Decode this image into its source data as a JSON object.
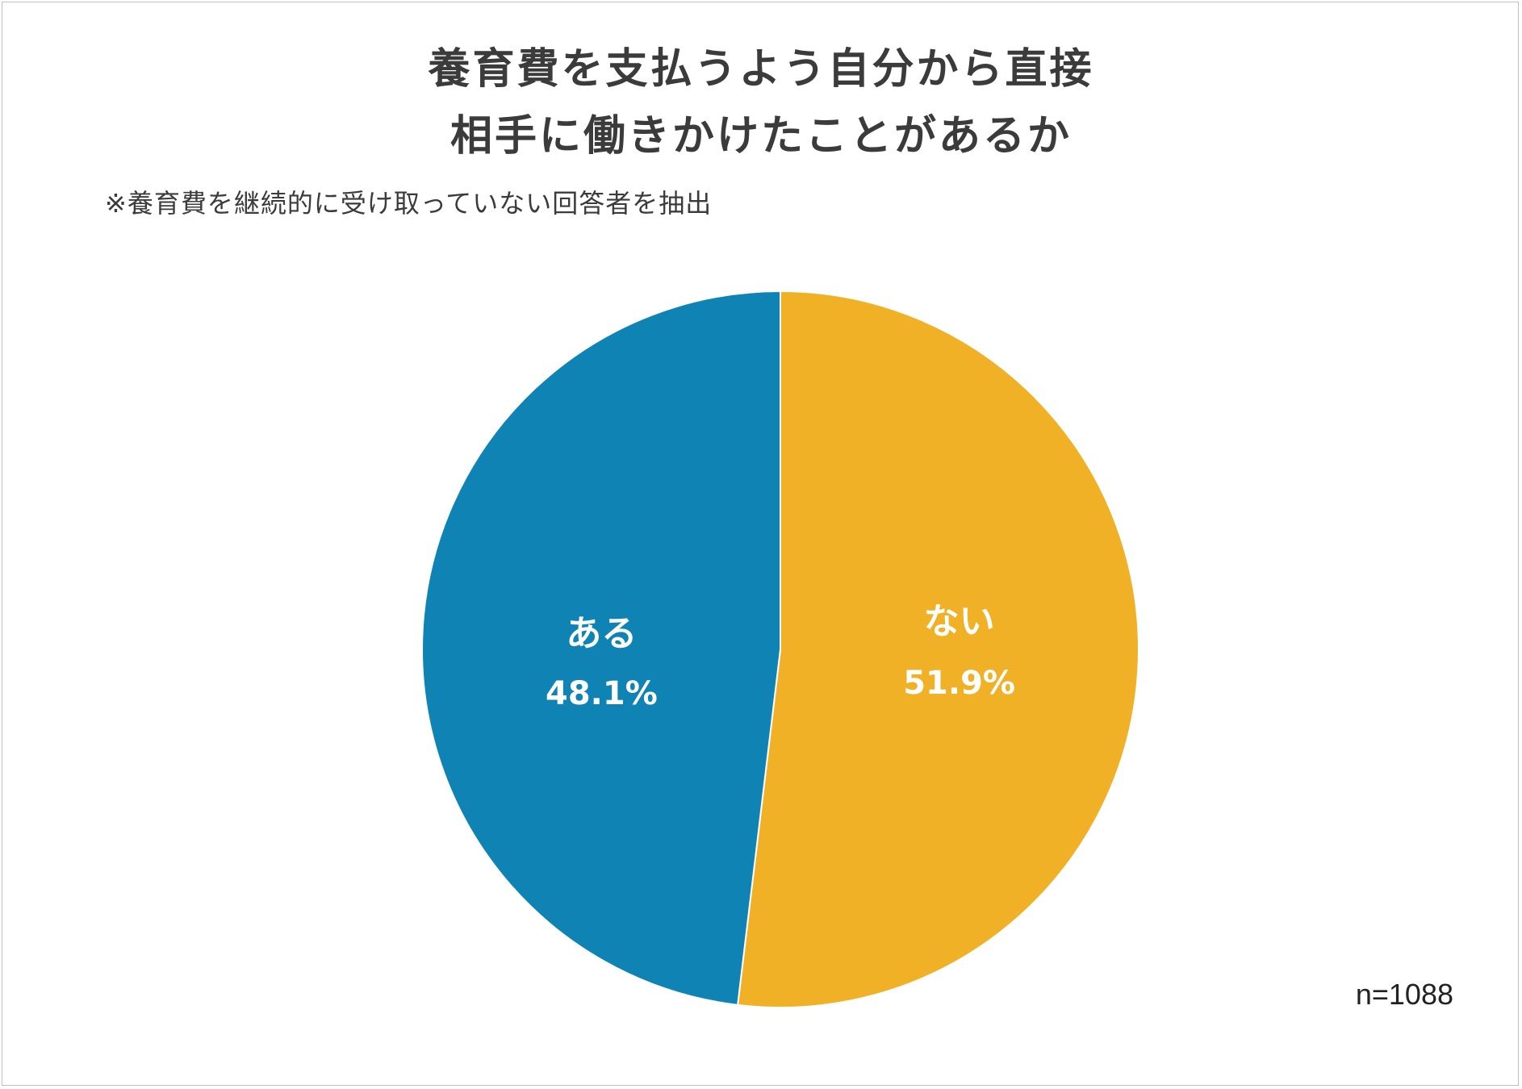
{
  "chart_data": {
    "type": "pie",
    "title_lines": [
      "養育費を支払うよう自分から直接",
      "相手に働きかけたことがあるか"
    ],
    "subtitle": "※養育費を継続的に受け取っていない回答者を抽出",
    "sample_size": "n=1088",
    "slices": [
      {
        "name": "ない",
        "value": 51.9,
        "label": "51.9%",
        "color": "#F0B126"
      },
      {
        "name": "ある",
        "value": 48.1,
        "label": "48.1%",
        "color": "#0F84B4"
      }
    ],
    "start": "12 o'clock",
    "direction": "clockwise",
    "slice_border_color": "#ffffff"
  }
}
